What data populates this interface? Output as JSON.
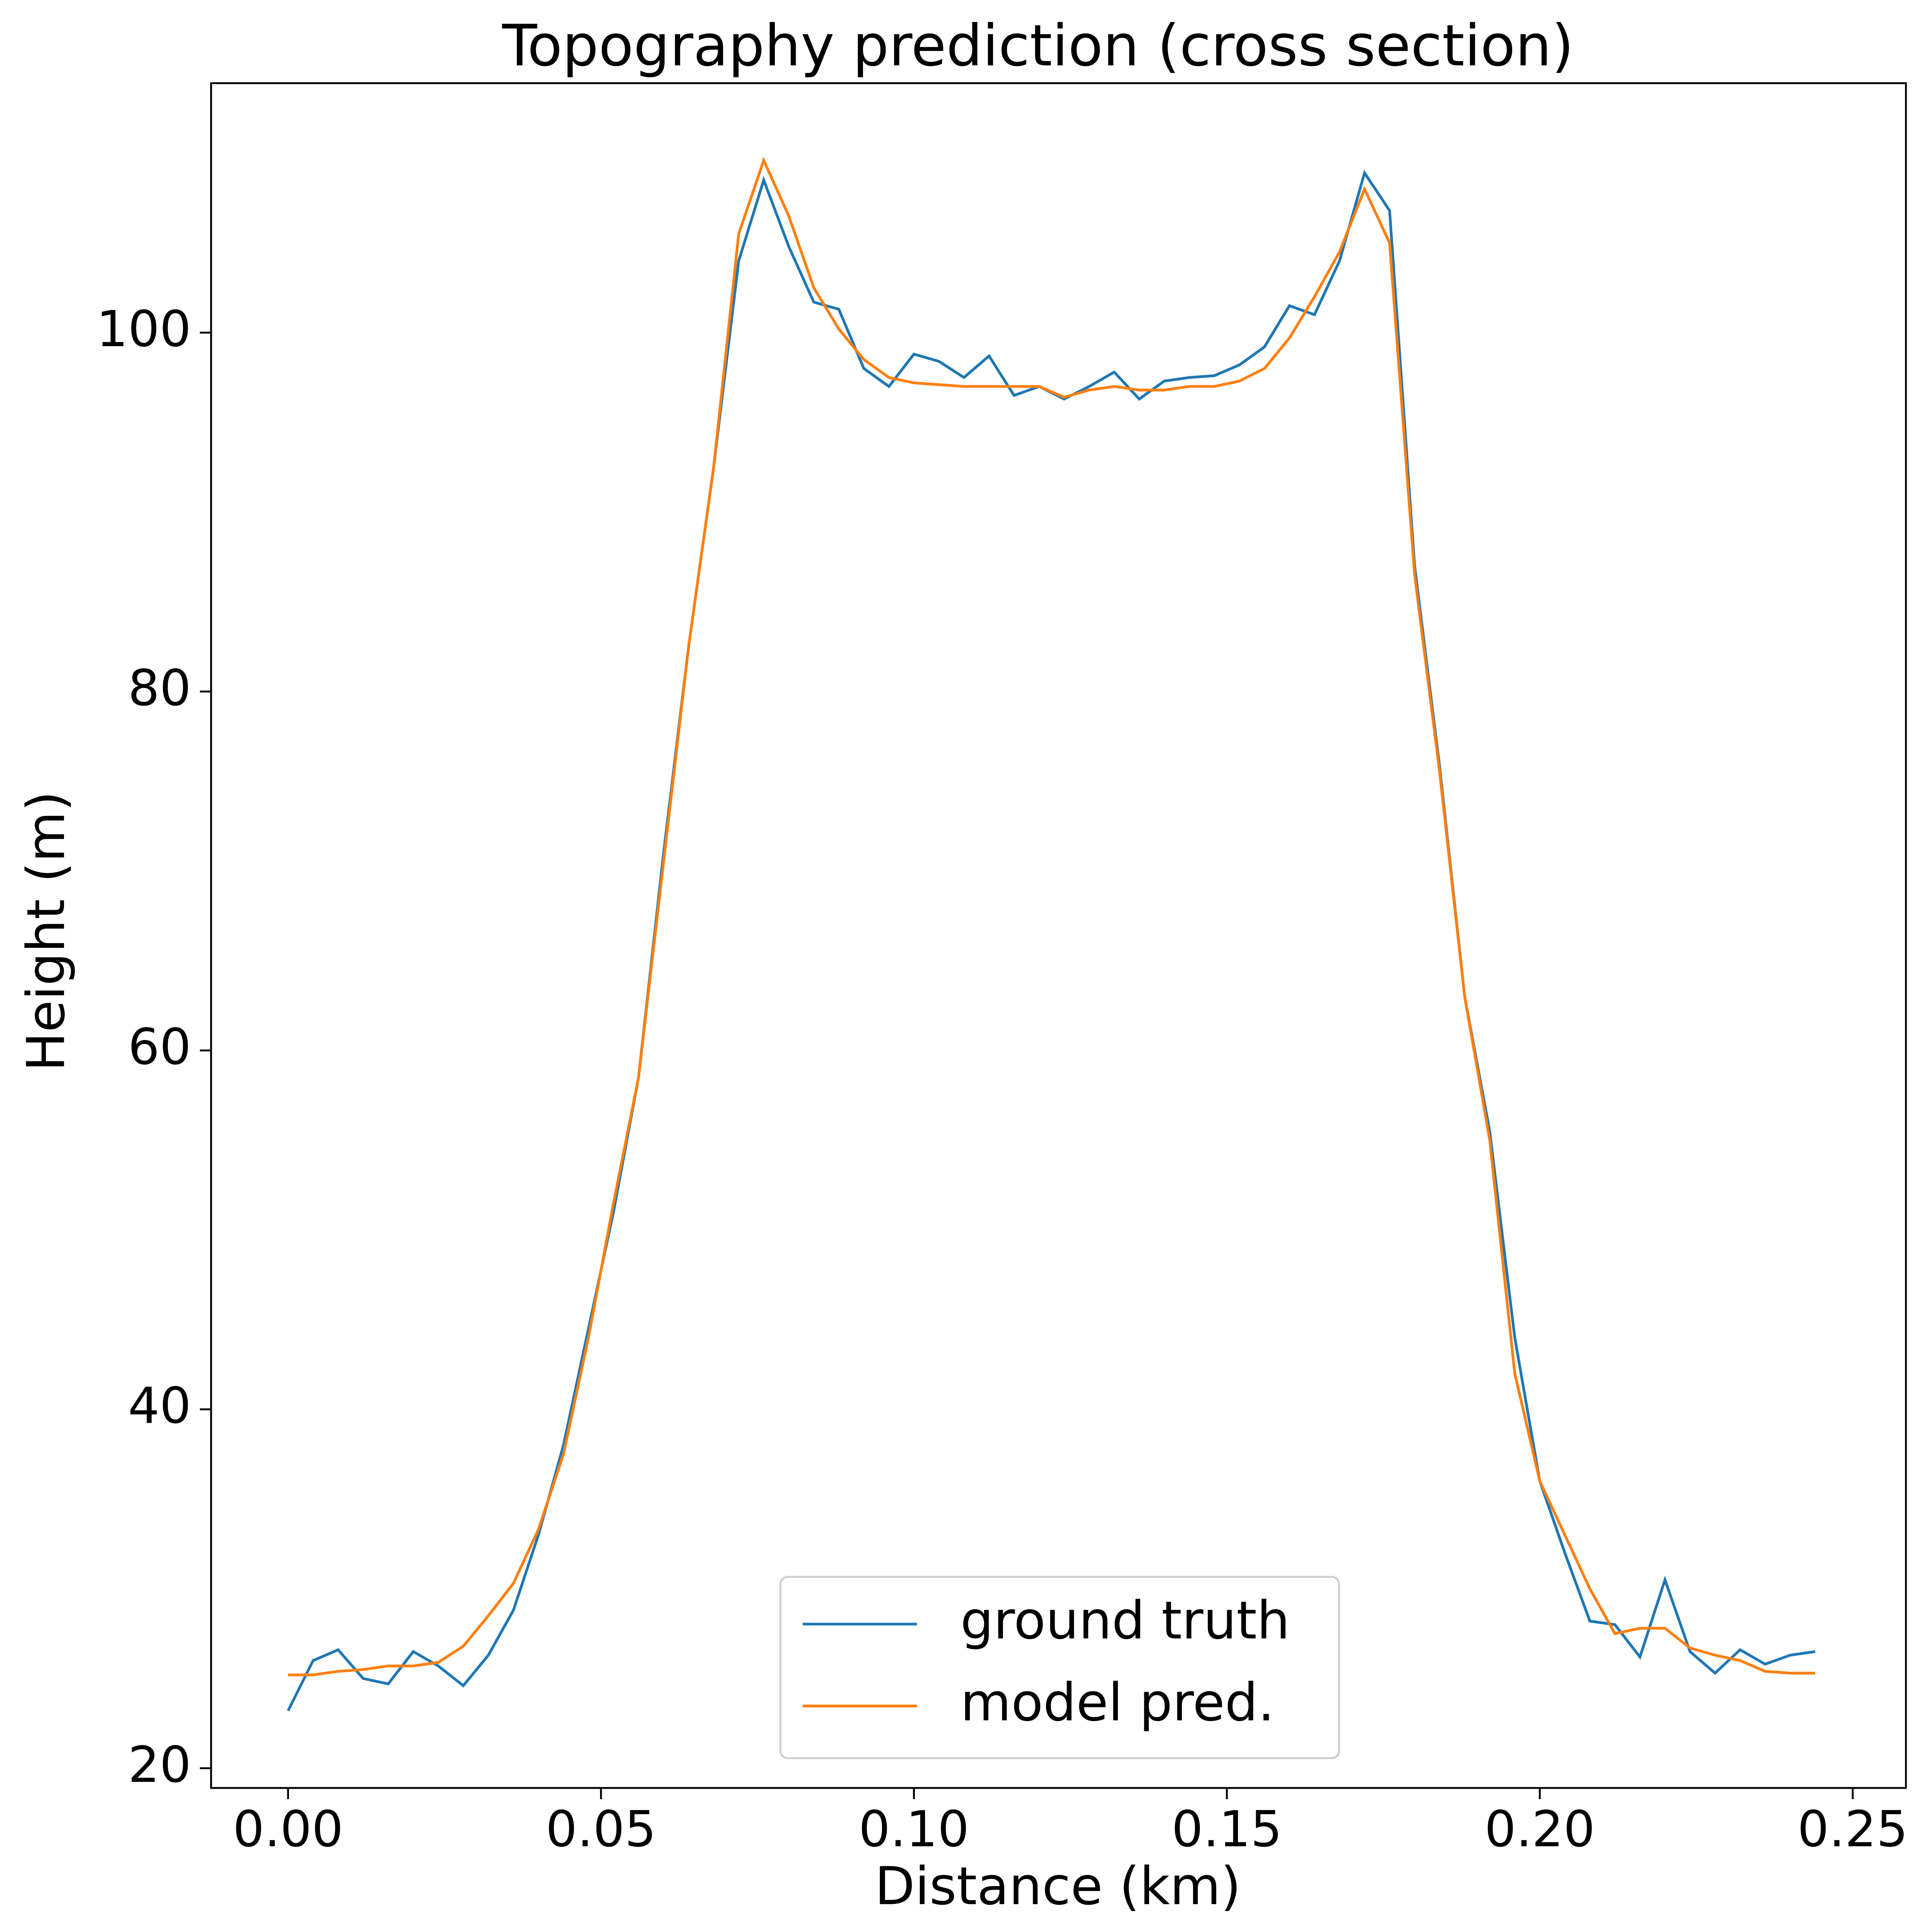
{
  "chart_data": {
    "type": "line",
    "title": "Topography prediction  (cross section)",
    "x_label": "Distance (km)",
    "y_label": "Height (m)",
    "x": [
      0,
      0.004,
      0.008,
      0.012,
      0.016,
      0.02,
      0.024,
      0.028,
      0.032,
      0.036,
      0.04,
      0.044,
      0.048,
      0.052,
      0.056,
      0.06,
      0.064,
      0.068,
      0.072,
      0.076,
      0.08,
      0.084,
      0.088,
      0.092,
      0.096,
      0.1,
      0.104,
      0.108,
      0.112,
      0.116,
      0.12,
      0.124,
      0.128,
      0.132,
      0.136,
      0.14,
      0.144,
      0.148,
      0.152,
      0.156,
      0.16,
      0.164,
      0.168,
      0.172,
      0.176,
      0.18,
      0.184,
      0.188,
      0.192,
      0.196,
      0.2,
      0.204,
      0.208,
      0.212,
      0.216,
      0.22,
      0.224,
      0.228,
      0.232,
      0.236,
      0.24,
      0.244
    ],
    "series": [
      {
        "name": "ground truth",
        "color": "#1f77b4",
        "values": [
          23.2,
          26.0,
          26.6,
          25.0,
          24.7,
          26.5,
          25.7,
          24.6,
          26.3,
          28.8,
          33.0,
          38.0,
          44.5,
          51.0,
          58.5,
          71.0,
          82.5,
          92.5,
          104.0,
          108.5,
          104.8,
          101.7,
          101.3,
          98.0,
          97.0,
          98.8,
          98.4,
          97.5,
          98.7,
          96.5,
          97.0,
          96.3,
          97.0,
          97.8,
          96.3,
          97.3,
          97.5,
          97.6,
          98.2,
          99.2,
          101.5,
          101.0,
          104.0,
          108.9,
          106.8,
          87.0,
          75.8,
          63.0,
          55.5,
          44.0,
          36.0,
          32.0,
          28.2,
          28.0,
          26.2,
          30.5,
          26.5,
          25.3,
          26.6,
          25.8,
          26.3,
          26.5
        ]
      },
      {
        "name": "model pred.",
        "color": "#ff7f0e",
        "values": [
          25.2,
          25.2,
          25.4,
          25.5,
          25.7,
          25.7,
          25.9,
          26.8,
          28.5,
          30.3,
          33.3,
          37.5,
          44.0,
          51.5,
          58.5,
          70.5,
          82.5,
          92.5,
          105.5,
          109.6,
          106.5,
          102.5,
          100.2,
          98.5,
          97.5,
          97.2,
          97.1,
          97.0,
          97.0,
          97.0,
          97.0,
          96.4,
          96.8,
          97.0,
          96.8,
          96.8,
          97.0,
          97.0,
          97.3,
          98.0,
          99.7,
          102.0,
          104.5,
          108.0,
          105.0,
          86.5,
          75.5,
          63.0,
          55.0,
          42.0,
          36.0,
          33.0,
          30.0,
          27.5,
          27.8,
          27.8,
          26.7,
          26.3,
          26.0,
          25.4,
          25.3,
          25.3
        ]
      }
    ],
    "xlim": [
      -0.0123,
      0.2585
    ],
    "ylim": [
      18.9,
      113.9
    ],
    "xticks": [
      {
        "value": 0,
        "label": "0.00"
      },
      {
        "value": 0.05,
        "label": "0.05"
      },
      {
        "value": 0.1,
        "label": "0.10"
      },
      {
        "value": 0.15,
        "label": "0.15"
      },
      {
        "value": 0.2,
        "label": "0.20"
      },
      {
        "value": 0.25,
        "label": "0.25"
      }
    ],
    "yticks": [
      20,
      40,
      60,
      80,
      100
    ],
    "grid": false,
    "legend": "lower center"
  }
}
